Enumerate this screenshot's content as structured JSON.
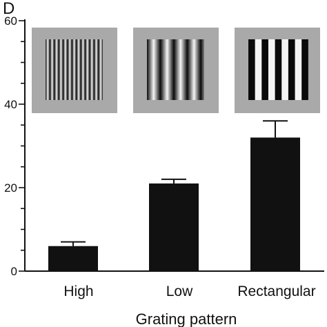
{
  "panel_label": "D",
  "chart_data": {
    "type": "bar",
    "categories": [
      "High",
      "Low",
      "Rectangular"
    ],
    "values": [
      6,
      21,
      32
    ],
    "errors": [
      1,
      1,
      4
    ],
    "xlabel": "Grating pattern",
    "ylabel": "",
    "ylim": [
      0,
      60
    ],
    "yticks": [
      0,
      20,
      40,
      60
    ],
    "grid": false,
    "bar_color": "#111111",
    "stimulus_insets": [
      {
        "category": "High",
        "grating": "high spatial frequency sinusoidal"
      },
      {
        "category": "Low",
        "grating": "low spatial frequency sinusoidal"
      },
      {
        "category": "Rectangular",
        "grating": "rectangular square-wave"
      }
    ],
    "inset_background": "#a9a9a9"
  }
}
